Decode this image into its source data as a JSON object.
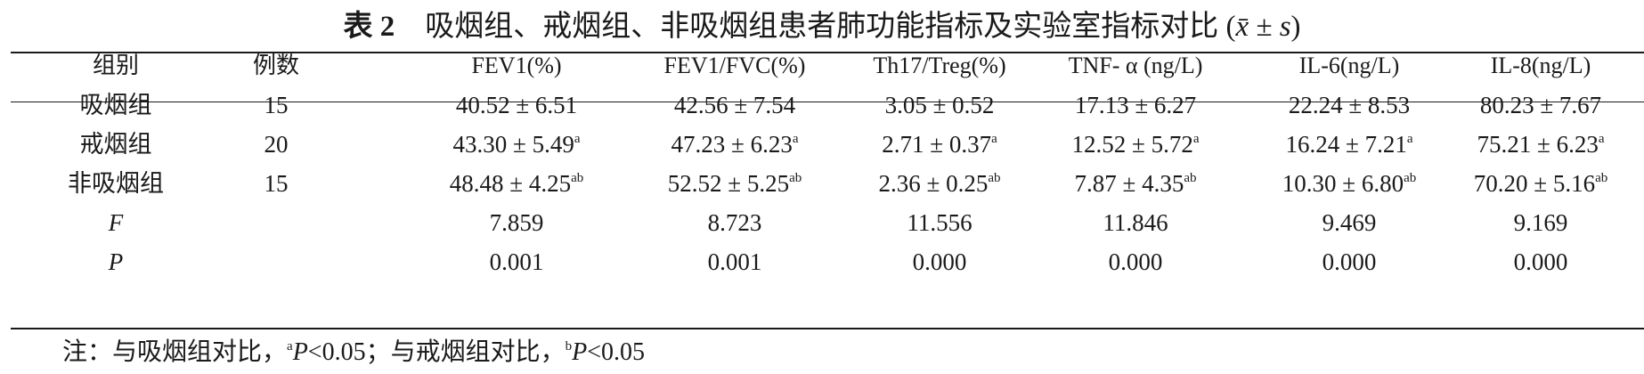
{
  "title": {
    "label": "表 2",
    "text": "吸烟组、戒烟组、非吸烟组患者肺功能指标及实验室指标对比 (",
    "stat": "x̄ ± s",
    "close": ")"
  },
  "table": {
    "headers": [
      "组别",
      "例数",
      "FEV1(%)",
      "FEV1/FVC(%)",
      "Th17/Treg(%)",
      "TNF- α (ng/L)",
      "IL-6(ng/L)",
      "IL-8(ng/L)"
    ],
    "rows": [
      {
        "group": "吸烟组",
        "n": "15",
        "values": [
          "40.52 ± 6.51",
          "42.56 ± 7.54",
          "3.05 ± 0.52",
          "17.13 ± 6.27",
          "22.24 ± 8.53",
          "80.23 ± 7.67"
        ],
        "sup": [
          "",
          "",
          "",
          "",
          "",
          ""
        ]
      },
      {
        "group": "戒烟组",
        "n": "20",
        "values": [
          "43.30 ± 5.49",
          "47.23 ± 6.23",
          "2.71 ± 0.37",
          "12.52 ± 5.72",
          "16.24 ± 7.21",
          "75.21 ± 6.23"
        ],
        "sup": [
          "a",
          "a",
          "a",
          "a",
          "a",
          "a"
        ]
      },
      {
        "group": "非吸烟组",
        "n": "15",
        "values": [
          "48.48 ± 4.25",
          "52.52 ± 5.25",
          "2.36 ± 0.25",
          "7.87 ± 4.35",
          "10.30 ± 6.80",
          "70.20 ± 5.16"
        ],
        "sup": [
          "ab",
          "ab",
          "ab",
          "ab",
          "ab",
          "ab"
        ]
      }
    ],
    "stats": [
      {
        "label": "F",
        "values": [
          "7.859",
          "8.723",
          "11.556",
          "11.846",
          "9.469",
          "9.169"
        ]
      },
      {
        "label": "P",
        "values": [
          "0.001",
          "0.001",
          "0.000",
          "0.000",
          "0.000",
          "0.000"
        ]
      }
    ]
  },
  "note": {
    "prefix": "注：与吸烟组对比，",
    "sup_a": "a",
    "p_a": "P",
    "val_a": "<0.05；与戒烟组对比，",
    "sup_b": "b",
    "p_b": "P",
    "val_b": "<0.05"
  }
}
